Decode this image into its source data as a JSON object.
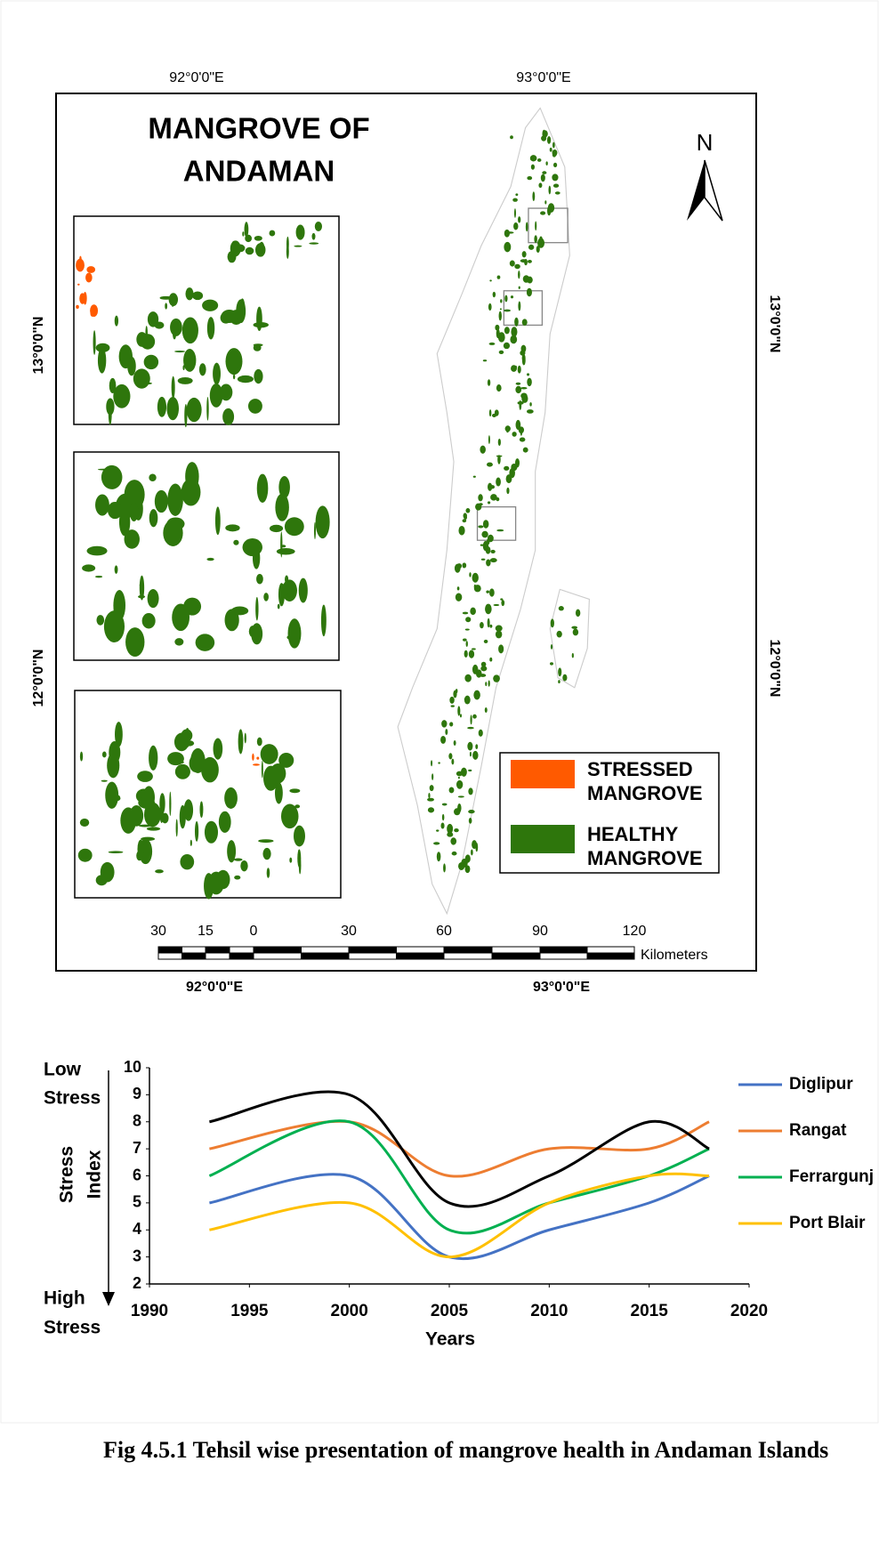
{
  "map": {
    "title": [
      "MANGROVE OF",
      "ANDAMAN"
    ],
    "north": "N",
    "lon_labels": [
      "92°0'0\"E",
      "93°0'0\"E"
    ],
    "lat_labels": [
      "13°0'0\"N",
      "12°0'0\"N"
    ],
    "legend": [
      {
        "label": [
          "STRESSED",
          "MANGROVE"
        ],
        "color": "#ff5a00"
      },
      {
        "label": [
          "HEALTHY",
          "MANGROVE"
        ],
        "color": "#2e760c"
      }
    ],
    "scale_labels": [
      "30",
      "15",
      "0",
      "30",
      "60",
      "90",
      "120"
    ],
    "scale_unit": "Kilometers"
  },
  "chart_data": {
    "type": "line",
    "x": [
      1993,
      2000,
      2005,
      2010,
      2015,
      2018
    ],
    "series": [
      {
        "name": "Diglipur",
        "color": "#4472c4",
        "values": [
          5,
          6,
          3,
          4,
          5,
          6
        ]
      },
      {
        "name": "Rangat",
        "color": "#ed7d31",
        "values": [
          7,
          8,
          6,
          7,
          7,
          8
        ]
      },
      {
        "name": "Ferrargunj",
        "color": "#00b050",
        "values": [
          6,
          8,
          4,
          5,
          6,
          7
        ]
      },
      {
        "name": "Port Blair",
        "color": "#ffc000",
        "values": [
          4,
          5,
          3,
          5,
          6,
          6
        ]
      },
      {
        "color": "#000000",
        "values": [
          8,
          9,
          5,
          6,
          8,
          7
        ]
      }
    ],
    "xlim": [
      1990,
      2020
    ],
    "xticks": [
      1990,
      1995,
      2000,
      2005,
      2010,
      2015,
      2020
    ],
    "ylim": [
      2,
      10
    ],
    "yticks": [
      2,
      3,
      4,
      5,
      6,
      7,
      8,
      9,
      10
    ],
    "xlabel": "Years",
    "ylabel": [
      "Stress",
      "Index"
    ],
    "top_note": [
      "Low",
      "Stress"
    ],
    "bottom_note": [
      "High",
      "Stress"
    ],
    "smooth": true
  },
  "caption": "Fig 4.5.1 Tehsil wise presentation of mangrove health in Andaman Islands"
}
